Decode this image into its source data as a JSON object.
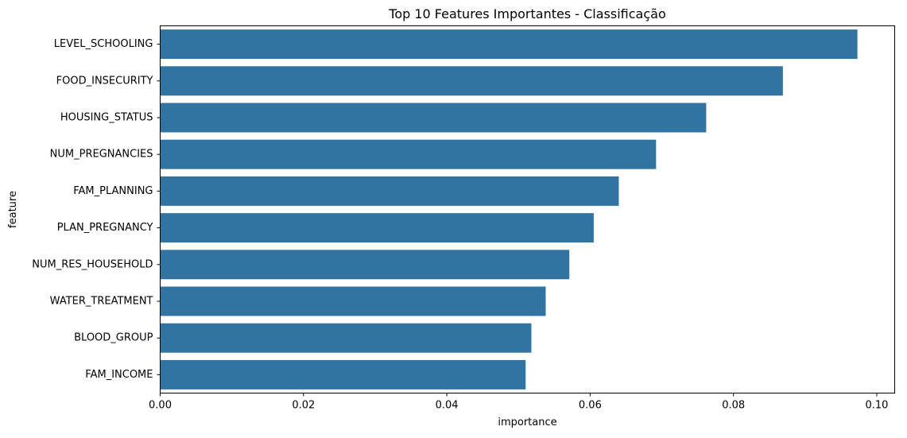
{
  "chart_data": {
    "type": "bar",
    "orientation": "horizontal",
    "title": "Top 10 Features Importantes - Classificação",
    "xlabel": "importance",
    "ylabel": "feature",
    "categories": [
      "LEVEL_SCHOOLING",
      "FOOD_INSECURITY",
      "HOUSING_STATUS",
      "NUM_PREGNANCIES",
      "FAM_PLANNING",
      "PLAN_PREGNANCY",
      "NUM_RES_HOUSEHOLD",
      "WATER_TREATMENT",
      "BLOOD_GROUP",
      "FAM_INCOME"
    ],
    "values": [
      0.0973,
      0.0869,
      0.0762,
      0.0692,
      0.064,
      0.0605,
      0.0571,
      0.0538,
      0.0518,
      0.051
    ],
    "xlim": [
      0,
      0.1025
    ],
    "xticks": [
      0.0,
      0.02,
      0.04,
      0.06,
      0.08,
      0.1
    ],
    "xtick_labels": [
      "0.00",
      "0.02",
      "0.04",
      "0.06",
      "0.08",
      "0.10"
    ],
    "bar_color": "#3274a1",
    "grid": false,
    "legend": false
  }
}
